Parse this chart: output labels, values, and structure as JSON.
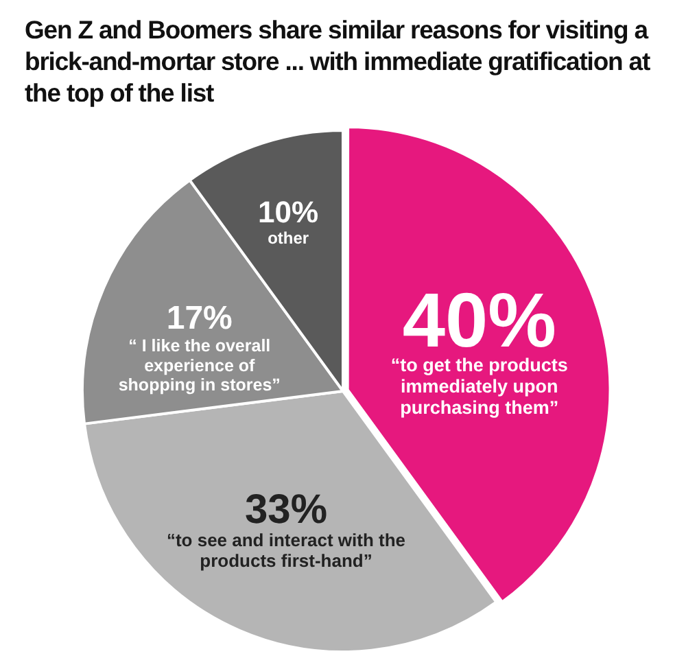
{
  "chart_data": {
    "type": "pie",
    "title": "Gen Z and Boomers share similar reasons for visiting a brick-and-mortar store ... with immediate gratification at the top of the list",
    "categories": [
      "“to get the products immediately upon purchasing them”",
      "“to see and interact with the products first-hand”",
      "“ I like the overall experience of shopping in stores”",
      "other"
    ],
    "values": [
      40,
      33,
      17,
      10
    ],
    "colors": [
      "#e6187e",
      "#b5b5b5",
      "#8e8e8e",
      "#5a5a5a"
    ],
    "value_labels": [
      "40%",
      "33%",
      "17%",
      "10%"
    ],
    "legend": false
  }
}
